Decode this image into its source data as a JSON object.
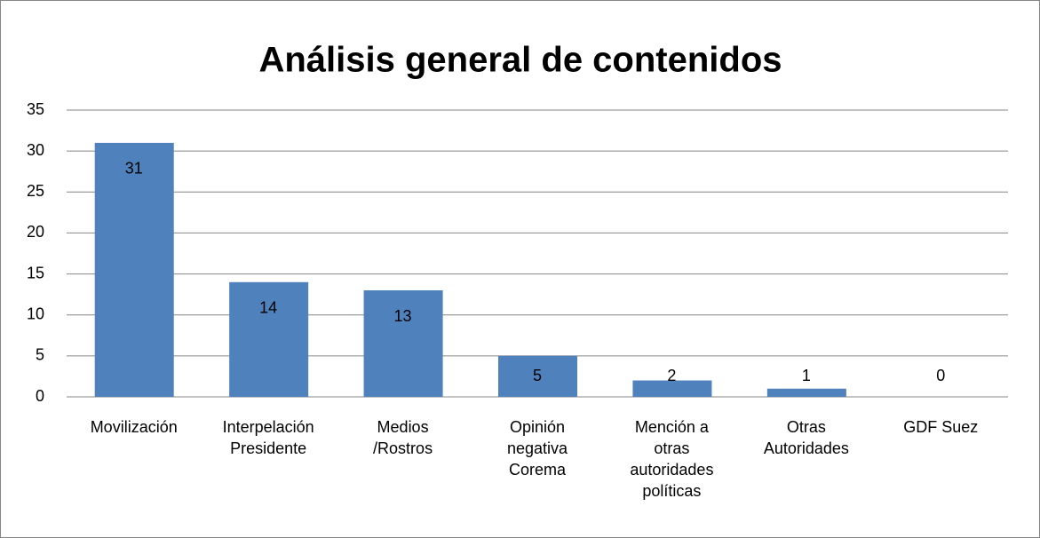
{
  "chart_data": {
    "type": "bar",
    "title": "Análisis general de contenidos",
    "categories": [
      "Movilización",
      "Interpelación Presidente",
      "Medios /Rostros",
      "Opinión negativa Corema",
      "Mención a otras autoridades políticas",
      "Otras Autoridades",
      "GDF Suez"
    ],
    "values": [
      31,
      14,
      13,
      5,
      2,
      1,
      0
    ],
    "color": "#4f81bd",
    "ylim": [
      0,
      35
    ],
    "yticks": [
      0,
      5,
      10,
      15,
      20,
      25,
      30,
      35
    ],
    "grid": true
  }
}
